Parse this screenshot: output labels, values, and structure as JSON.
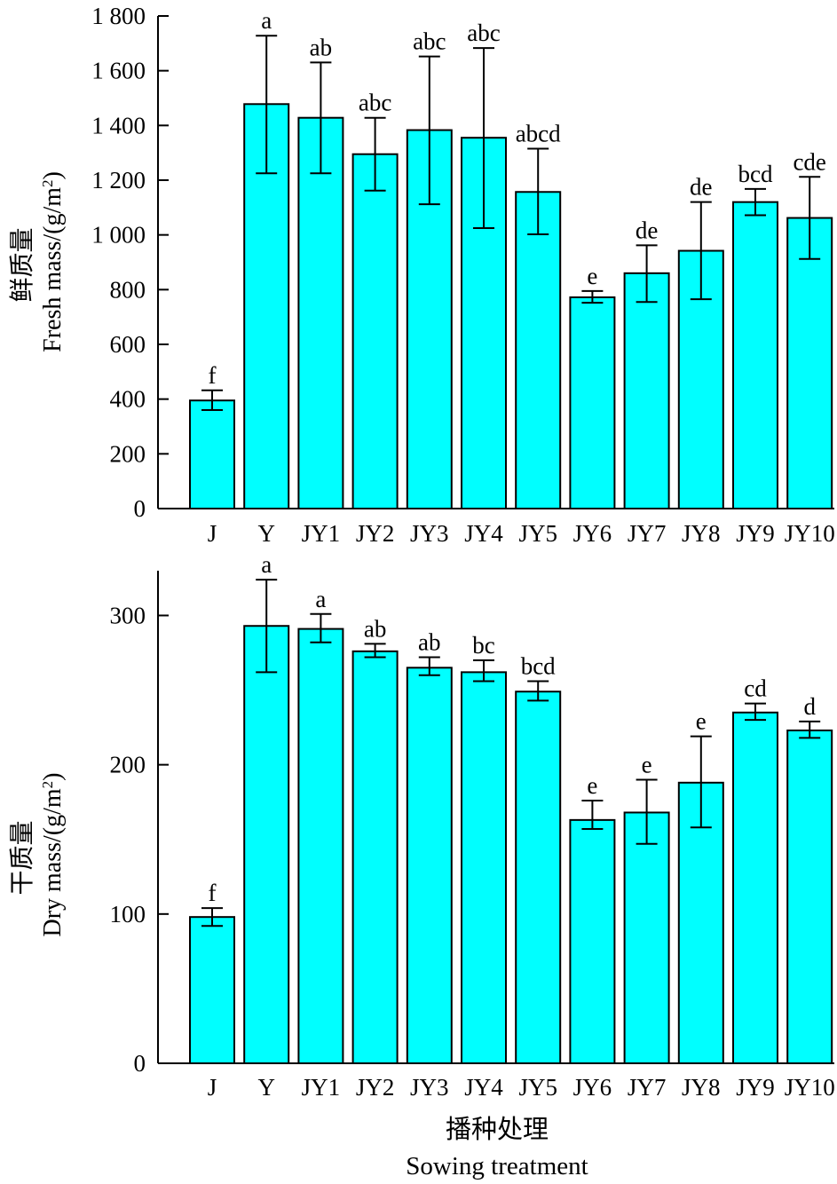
{
  "colors": {
    "bar_fill": "#00FFFF",
    "bar_stroke": "#000000",
    "axis": "#000000"
  },
  "x_axis_title_cn": "播种处理",
  "x_axis_title_en": "Sowing treatment",
  "chart_data": [
    {
      "type": "bar",
      "ylabel_cn": "鲜质量",
      "ylabel_en": "Fresh mass/(g/m",
      "ylabel_sup": "2",
      "ylabel_close": ")",
      "categories": [
        "J",
        "Y",
        "JY1",
        "JY2",
        "JY3",
        "JY4",
        "JY5",
        "JY6",
        "JY7",
        "JY8",
        "JY9",
        "JY10"
      ],
      "values": [
        395,
        1478,
        1428,
        1295,
        1383,
        1355,
        1157,
        772,
        860,
        942,
        1120,
        1062
      ],
      "error_low": [
        360,
        1225,
        1225,
        1162,
        1112,
        1025,
        1002,
        752,
        755,
        765,
        1072,
        912
      ],
      "error_high": [
        432,
        1728,
        1630,
        1428,
        1652,
        1683,
        1315,
        795,
        962,
        1120,
        1168,
        1212
      ],
      "significance": [
        "f",
        "a",
        "ab",
        "abc",
        "abc",
        "abc",
        "abcd",
        "e",
        "de",
        "de",
        "bcd",
        "cde"
      ],
      "ylim": [
        0,
        1800
      ],
      "yticks": [
        0,
        200,
        400,
        600,
        800,
        1000,
        1200,
        1400,
        1600,
        1800
      ],
      "ytick_labels": [
        "0",
        "200",
        "400",
        "600",
        "800",
        "1 000",
        "1 200",
        "1 400",
        "1 600",
        "1 800"
      ]
    },
    {
      "type": "bar",
      "ylabel_cn": "干质量",
      "ylabel_en": "Dry mass/(g/m",
      "ylabel_sup": "2",
      "ylabel_close": ")",
      "categories": [
        "J",
        "Y",
        "JY1",
        "JY2",
        "JY3",
        "JY4",
        "JY5",
        "JY6",
        "JY7",
        "JY8",
        "JY9",
        "JY10"
      ],
      "values": [
        98,
        293,
        291,
        276,
        265,
        262,
        249,
        163,
        168,
        188,
        235,
        223
      ],
      "error_low": [
        92,
        262,
        282,
        272,
        260,
        256,
        243,
        157,
        147,
        158,
        230,
        218
      ],
      "error_high": [
        104,
        324,
        301,
        281,
        272,
        270,
        256,
        176,
        190,
        219,
        241,
        229
      ],
      "significance": [
        "f",
        "a",
        "a",
        "ab",
        "ab",
        "bc",
        "bcd",
        "e",
        "e",
        "e",
        "cd",
        "d"
      ],
      "ylim": [
        0,
        330
      ],
      "yticks": [
        0,
        100,
        200,
        300
      ],
      "ytick_labels": [
        "0",
        "100",
        "200",
        "300"
      ]
    }
  ]
}
